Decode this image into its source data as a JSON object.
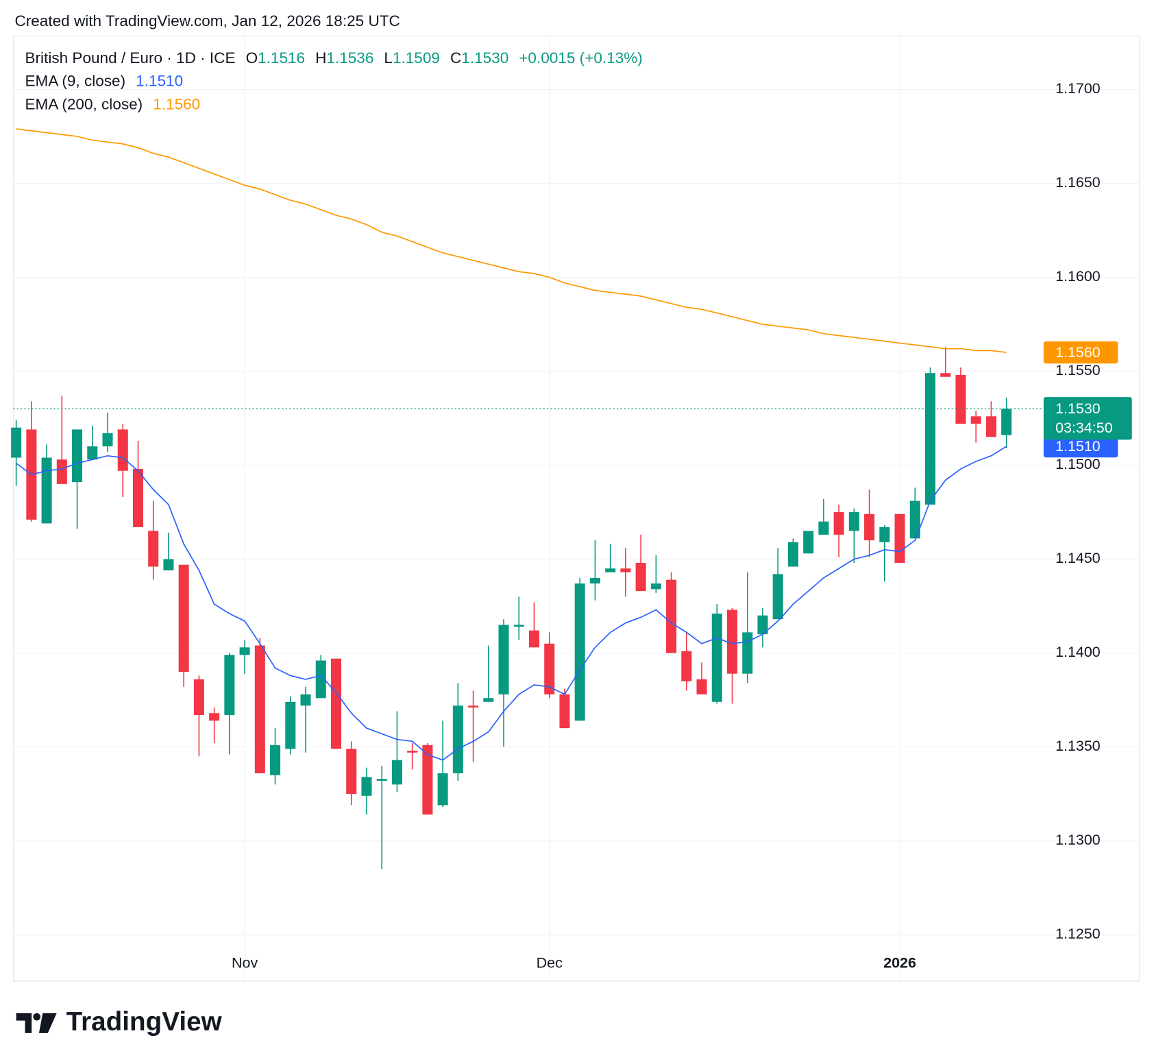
{
  "header": "Created with TradingView.com, Jan 12, 2026 18:25 UTC",
  "brand": "TradingView",
  "chart_data": {
    "type": "candlestick",
    "title": "British Pound / Euro · 1D · ICE",
    "categories": [
      null,
      null,
      null,
      null,
      null,
      null,
      null,
      null,
      null,
      null,
      null,
      null,
      null,
      null,
      null,
      "Nov",
      null,
      null,
      null,
      null,
      null,
      null,
      null,
      null,
      null,
      null,
      null,
      null,
      null,
      null,
      null,
      null,
      null,
      null,
      null,
      "Dec",
      null,
      null,
      null,
      null,
      null,
      null,
      null,
      null,
      null,
      null,
      null,
      null,
      null,
      null,
      null,
      null,
      null,
      null,
      null,
      null,
      null,
      null,
      "2026",
      null,
      null,
      null,
      null,
      null,
      null,
      null
    ],
    "ohlc": {
      "up_color": "#089981",
      "down_color": "#f23645",
      "open": [
        1.1504,
        1.1519,
        1.1469,
        1.1503,
        1.1491,
        1.1503,
        1.151,
        1.1519,
        1.1498,
        1.1465,
        1.1444,
        1.1447,
        1.1386,
        1.1368,
        1.1367,
        1.1399,
        1.1404,
        1.1335,
        1.1349,
        1.1372,
        1.1376,
        1.1397,
        1.1349,
        1.1324,
        1.1332,
        1.133,
        1.1348,
        1.1351,
        1.1319,
        1.1336,
        1.1372,
        1.1374,
        1.1378,
        1.1414,
        1.1412,
        1.1405,
        1.1378,
        1.1364,
        1.1437,
        1.1443,
        1.1445,
        1.1448,
        1.1434,
        1.1439,
        1.1401,
        1.1386,
        1.1374,
        1.1423,
        1.1389,
        1.141,
        1.1418,
        1.1446,
        1.1453,
        1.1463,
        1.1475,
        1.1465,
        1.1474,
        1.1459,
        1.1474,
        1.1461,
        1.1479,
        1.1549,
        1.1548,
        1.1526,
        1.1526,
        1.1516
      ],
      "high": [
        1.1524,
        1.1534,
        1.1511,
        1.1537,
        1.1519,
        1.1521,
        1.1528,
        1.1522,
        1.1513,
        1.1481,
        1.1464,
        1.1447,
        1.1388,
        1.1371,
        1.14,
        1.1407,
        1.1408,
        1.136,
        1.1377,
        1.1382,
        1.1399,
        1.1397,
        1.1353,
        1.1339,
        1.134,
        1.1369,
        1.1352,
        1.1352,
        1.1364,
        1.1384,
        1.138,
        1.1404,
        1.1418,
        1.143,
        1.1427,
        1.1411,
        1.1381,
        1.144,
        1.146,
        1.1458,
        1.1456,
        1.1463,
        1.1452,
        1.1443,
        1.1411,
        1.1395,
        1.1426,
        1.1424,
        1.1443,
        1.1424,
        1.1456,
        1.1461,
        1.1465,
        1.1482,
        1.1479,
        1.1477,
        1.1487,
        1.1468,
        1.1474,
        1.1488,
        1.1552,
        1.1563,
        1.1552,
        1.1529,
        1.1534,
        1.1536
      ],
      "low": [
        1.1489,
        1.147,
        1.1469,
        1.149,
        1.1466,
        1.1503,
        1.1507,
        1.1483,
        1.1467,
        1.1439,
        1.1444,
        1.1382,
        1.1345,
        1.1352,
        1.1346,
        1.1389,
        1.1336,
        1.133,
        1.1346,
        1.1347,
        1.1376,
        1.1349,
        1.1319,
        1.1314,
        1.1285,
        1.1326,
        1.1338,
        1.1314,
        1.1318,
        1.1332,
        1.1342,
        1.1374,
        1.135,
        1.1407,
        1.1403,
        1.1376,
        1.136,
        1.1364,
        1.1428,
        1.1443,
        1.143,
        1.1433,
        1.1432,
        1.14,
        1.138,
        1.1378,
        1.1373,
        1.1373,
        1.1384,
        1.1403,
        1.1418,
        1.1446,
        1.1453,
        1.1463,
        1.1451,
        1.1448,
        1.1451,
        1.1438,
        1.1448,
        1.1461,
        1.1479,
        1.1547,
        1.1522,
        1.1512,
        1.1515,
        1.1509
      ],
      "close": [
        1.152,
        1.1471,
        1.1504,
        1.149,
        1.1519,
        1.151,
        1.1517,
        1.1497,
        1.1467,
        1.1446,
        1.145,
        1.139,
        1.1367,
        1.1364,
        1.1399,
        1.1403,
        1.1336,
        1.1351,
        1.1374,
        1.1378,
        1.1396,
        1.1349,
        1.1325,
        1.1334,
        1.1333,
        1.1343,
        1.1347,
        1.1314,
        1.1336,
        1.1372,
        1.1371,
        1.1376,
        1.1415,
        1.1415,
        1.1403,
        1.1378,
        1.136,
        1.1437,
        1.144,
        1.1445,
        1.1443,
        1.1433,
        1.1437,
        1.14,
        1.1385,
        1.1378,
        1.1421,
        1.1389,
        1.1411,
        1.142,
        1.1442,
        1.1459,
        1.1465,
        1.147,
        1.1463,
        1.1475,
        1.146,
        1.1467,
        1.1448,
        1.1481,
        1.1549,
        1.1547,
        1.1522,
        1.1522,
        1.1515,
        1.153
      ]
    },
    "ohlc_legend": [
      {
        "key": "O",
        "value_label": "1.1516"
      },
      {
        "key": "H",
        "value_label": "1.1536"
      },
      {
        "key": "L",
        "value_label": "1.1509"
      },
      {
        "key": "C",
        "value_label": "1.1530"
      }
    ],
    "change_label": "+0.0015 (+0.13%)",
    "series": [
      {
        "name": "EMA (9, close)",
        "color": "#2962ff",
        "value_label": "1.1510",
        "values": [
          1.1501,
          1.1495,
          1.1497,
          1.1498,
          1.1501,
          1.1503,
          1.1505,
          1.1504,
          1.1497,
          1.1487,
          1.1479,
          1.1458,
          1.1444,
          1.1426,
          1.1421,
          1.1417,
          1.1405,
          1.1392,
          1.1388,
          1.1386,
          1.1388,
          1.1379,
          1.1368,
          1.136,
          1.1357,
          1.1354,
          1.1353,
          1.1346,
          1.1343,
          1.1349,
          1.1353,
          1.1358,
          1.1369,
          1.1378,
          1.1383,
          1.1382,
          1.1378,
          1.1391,
          1.1403,
          1.1411,
          1.1416,
          1.1419,
          1.1423,
          1.1416,
          1.1411,
          1.1405,
          1.1408,
          1.1405,
          1.1406,
          1.141,
          1.1417,
          1.1426,
          1.1433,
          1.144,
          1.1445,
          1.145,
          1.1452,
          1.1455,
          1.1454,
          1.146,
          1.1481,
          1.1492,
          1.1498,
          1.1502,
          1.1505,
          1.151
        ]
      },
      {
        "name": "EMA (200, close)",
        "color": "#ff9800",
        "value_label": "1.1560",
        "values": [
          1.1679,
          1.1678,
          1.1677,
          1.1676,
          1.1675,
          1.1673,
          1.1672,
          1.1671,
          1.1669,
          1.1666,
          1.1664,
          1.1661,
          1.1658,
          1.1655,
          1.1652,
          1.1649,
          1.1647,
          1.1644,
          1.1641,
          1.1639,
          1.1636,
          1.1633,
          1.1631,
          1.1628,
          1.1624,
          1.1622,
          1.1619,
          1.1616,
          1.1613,
          1.1611,
          1.1609,
          1.1607,
          1.1605,
          1.1603,
          1.1602,
          1.16,
          1.1597,
          1.1595,
          1.1593,
          1.1592,
          1.1591,
          1.159,
          1.1588,
          1.1586,
          1.1584,
          1.1583,
          1.1581,
          1.1579,
          1.1577,
          1.1575,
          1.1574,
          1.1573,
          1.1572,
          1.157,
          1.1569,
          1.1568,
          1.1567,
          1.1566,
          1.1565,
          1.1564,
          1.1563,
          1.1562,
          1.1562,
          1.1561,
          1.1561,
          1.156
        ]
      }
    ],
    "last_price": {
      "value": 1.153,
      "label": "1.1530",
      "countdown": "03:34:50"
    },
    "ylim": [
      1.1242,
      1.1728
    ],
    "yticks": [
      {
        "value": 1.125,
        "label": "1.1250"
      },
      {
        "value": 1.13,
        "label": "1.1300"
      },
      {
        "value": 1.135,
        "label": "1.1350"
      },
      {
        "value": 1.14,
        "label": "1.1400"
      },
      {
        "value": 1.145,
        "label": "1.1450"
      },
      {
        "value": 1.15,
        "label": "1.1500"
      },
      {
        "value": 1.155,
        "label": "1.1550"
      },
      {
        "value": 1.16,
        "label": "1.1600"
      },
      {
        "value": 1.165,
        "label": "1.1650"
      },
      {
        "value": 1.17,
        "label": "1.1700"
      }
    ],
    "grid": true
  }
}
